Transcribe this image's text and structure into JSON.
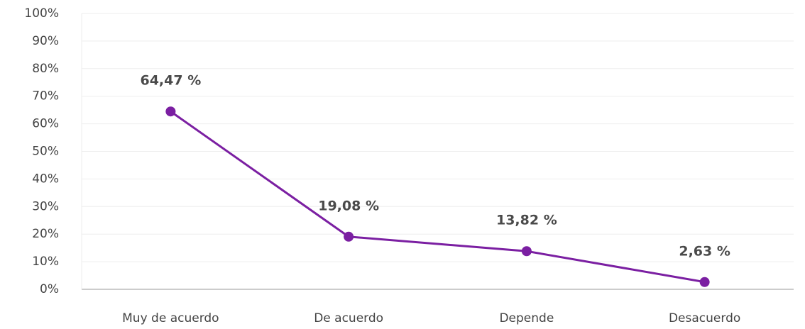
{
  "chart_data": {
    "type": "line",
    "categories": [
      "Muy de acuerdo",
      "De acuerdo",
      "Depende",
      "Desacuerdo"
    ],
    "series": [
      {
        "color": "#7b1fa2",
        "values": [
          64.47,
          19.08,
          13.82,
          2.63
        ],
        "value_labels": [
          "64,47 %",
          "19,08 %",
          "13,82 %",
          "2,63 %"
        ]
      }
    ],
    "ylim": [
      0,
      100
    ],
    "yticks": [
      {
        "value": 0,
        "label": "0%"
      },
      {
        "value": 10,
        "label": "10%"
      },
      {
        "value": 20,
        "label": "20%"
      },
      {
        "value": 30,
        "label": "30%"
      },
      {
        "value": 40,
        "label": "40%"
      },
      {
        "value": 50,
        "label": "50%"
      },
      {
        "value": 60,
        "label": "60%"
      },
      {
        "value": 70,
        "label": "70%"
      },
      {
        "value": 80,
        "label": "80%"
      },
      {
        "value": 90,
        "label": "90%"
      },
      {
        "value": 100,
        "label": "100%"
      }
    ],
    "grid": true
  }
}
